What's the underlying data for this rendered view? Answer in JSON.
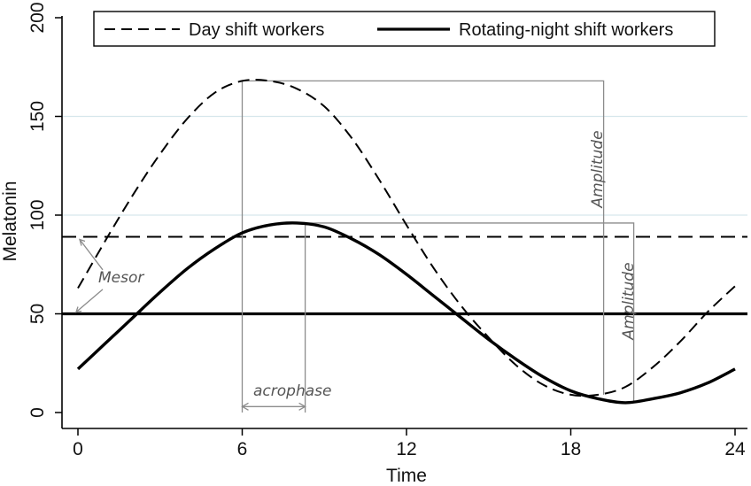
{
  "chart_data": {
    "type": "line",
    "xlabel": "Time",
    "ylabel": "Melatonin",
    "xlim": [
      0,
      24
    ],
    "ylim": [
      0,
      200
    ],
    "xticks": [
      0,
      6,
      12,
      18,
      24
    ],
    "yticks": [
      0,
      50,
      100,
      150,
      200
    ],
    "grid": "horizontal",
    "legend_position": "top",
    "series": [
      {
        "name": "Day shift workers",
        "style": "dashed",
        "color": "#000000",
        "x": [
          0,
          1,
          2,
          3,
          4,
          5,
          6,
          7,
          8,
          9,
          10,
          11,
          12,
          13,
          14,
          15,
          16,
          17,
          18,
          19,
          20,
          21,
          22,
          23,
          24
        ],
        "values": [
          63,
          87,
          110,
          131,
          149,
          162,
          168,
          168,
          164,
          155,
          139,
          118,
          95,
          73,
          54,
          38,
          24,
          14,
          9,
          9,
          13,
          23,
          36,
          51,
          64
        ]
      },
      {
        "name": "Rotating-night shift workers",
        "style": "solid",
        "color": "#000000",
        "x": [
          0,
          1,
          2,
          3,
          4,
          5,
          6,
          7,
          8,
          9,
          10,
          11,
          12,
          13,
          14,
          15,
          16,
          17,
          18,
          19,
          20,
          21,
          22,
          23,
          24
        ],
        "values": [
          22,
          35,
          48,
          61,
          73,
          83,
          91,
          95,
          96,
          94,
          88,
          80,
          70,
          59,
          48,
          37,
          27,
          18,
          11,
          7,
          5,
          7,
          10,
          15,
          22
        ]
      }
    ],
    "reference_lines": [
      {
        "y": 89,
        "style": "dashed"
      },
      {
        "y": 50,
        "style": "solid"
      }
    ],
    "annotations": [
      {
        "text": "Mesor"
      },
      {
        "text": "acrophase"
      },
      {
        "text": "Amplitude"
      },
      {
        "text": "Amplitude"
      }
    ]
  }
}
